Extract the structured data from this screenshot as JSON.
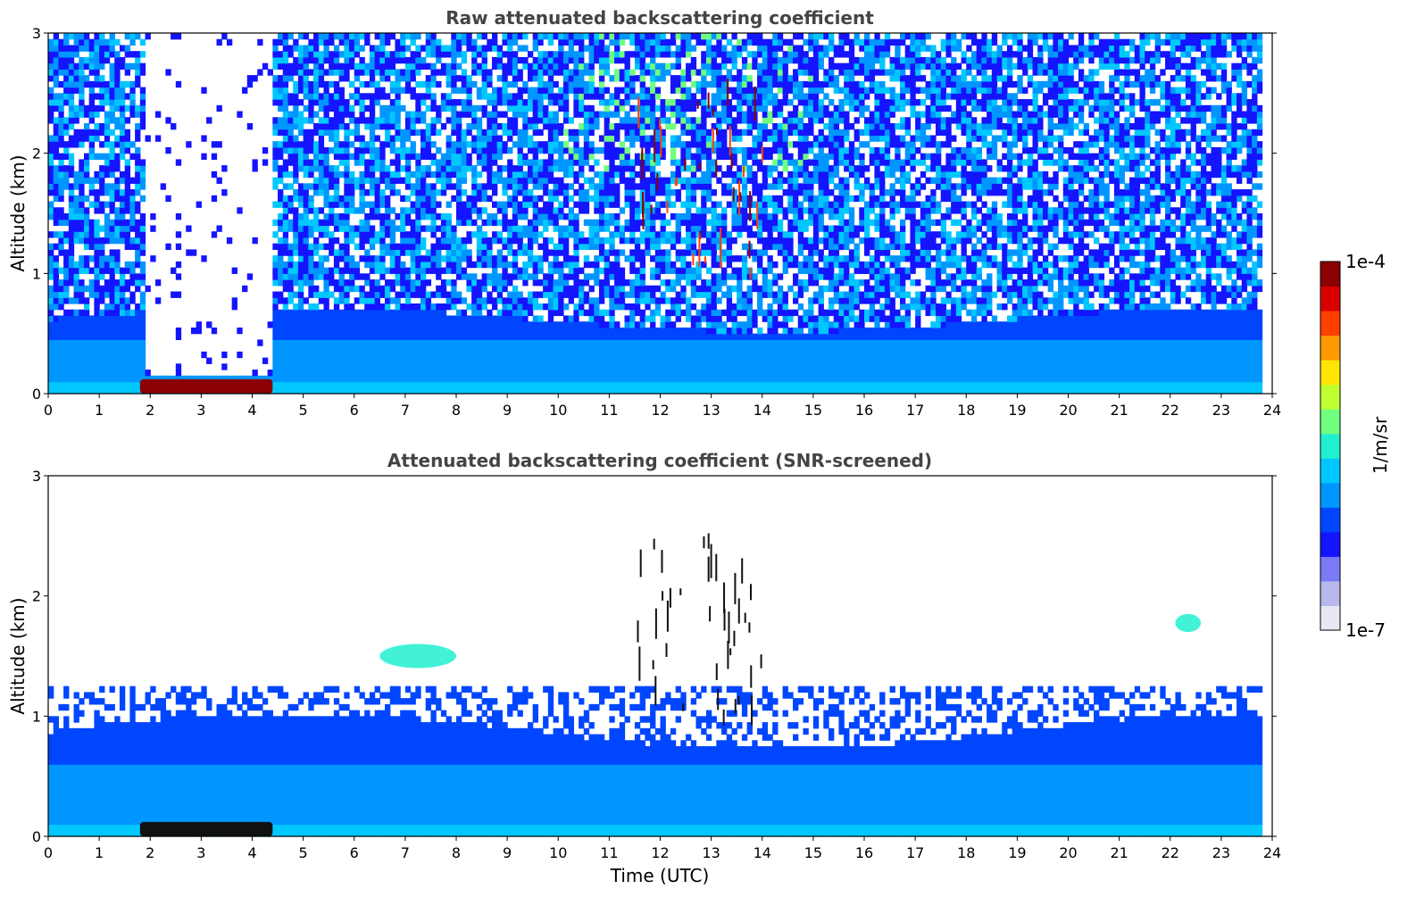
{
  "chart_data": [
    {
      "type": "heatmap",
      "title": "Raw attenuated backscattering coefficient",
      "ylabel": "Altitude (km)",
      "xlabel": "",
      "xlim": [
        0,
        24
      ],
      "ylim": [
        0,
        3
      ],
      "xticks": [
        "0",
        "1",
        "2",
        "3",
        "4",
        "5",
        "6",
        "7",
        "8",
        "9",
        "10",
        "11",
        "12",
        "13",
        "14",
        "15",
        "16",
        "17",
        "18",
        "19",
        "20",
        "21",
        "22",
        "23",
        "24"
      ],
      "yticks": [
        "0",
        "1",
        "2",
        "3"
      ],
      "features": [
        {
          "kind": "boundary_layer",
          "x": [
            0,
            23.8
          ],
          "top_km": 0.7
        },
        {
          "kind": "strong_surface_layer",
          "x": [
            1.8,
            4.4
          ],
          "y": [
            0,
            0.12
          ],
          "level": "1e-4"
        },
        {
          "kind": "signal_gap",
          "x": [
            1.9,
            4.3
          ],
          "y": [
            0.15,
            3
          ]
        },
        {
          "kind": "cloud_streaks",
          "x": [
            11.5,
            14.0
          ],
          "y": [
            0.9,
            2.4
          ]
        },
        {
          "kind": "noisy_upper_signal",
          "x": [
            10,
            14
          ],
          "y": [
            2,
            3
          ]
        }
      ]
    },
    {
      "type": "heatmap",
      "title": "Attenuated backscattering coefficient (SNR-screened)",
      "ylabel": "Altitude (km)",
      "xlabel": "Time (UTC)",
      "xlim": [
        0,
        24
      ],
      "ylim": [
        0,
        3
      ],
      "xticks": [
        "0",
        "1",
        "2",
        "3",
        "4",
        "5",
        "6",
        "7",
        "8",
        "9",
        "10",
        "11",
        "12",
        "13",
        "14",
        "15",
        "16",
        "17",
        "18",
        "19",
        "20",
        "21",
        "22",
        "23",
        "24"
      ],
      "yticks": [
        "0",
        "1",
        "2",
        "3"
      ],
      "features": [
        {
          "kind": "boundary_layer",
          "x": [
            0,
            23.8
          ],
          "top_km": 1.0
        },
        {
          "kind": "strong_surface_layer",
          "x": [
            1.8,
            4.4
          ],
          "y": [
            0,
            0.12
          ]
        },
        {
          "kind": "aerosol_patch",
          "x": [
            6.5,
            8.0
          ],
          "y": [
            1.4,
            1.6
          ]
        },
        {
          "kind": "aerosol_patch",
          "x": [
            22.1,
            22.6
          ],
          "y": [
            1.7,
            1.85
          ]
        },
        {
          "kind": "cloud_streaks",
          "x": [
            11.5,
            14.0
          ],
          "y": [
            0.9,
            2.4
          ]
        }
      ]
    }
  ],
  "colorbar": {
    "min_label": "1e-7",
    "max_label": "1e-4",
    "unit": "1/m/sr",
    "colors": [
      "#e8e8f4",
      "#b8b8ec",
      "#7a7af4",
      "#1414ff",
      "#0046ff",
      "#0096ff",
      "#00c8ff",
      "#20f0d0",
      "#70ff80",
      "#c0ff30",
      "#ffe600",
      "#ff9a00",
      "#ff4000",
      "#d80000",
      "#8b0000"
    ]
  }
}
